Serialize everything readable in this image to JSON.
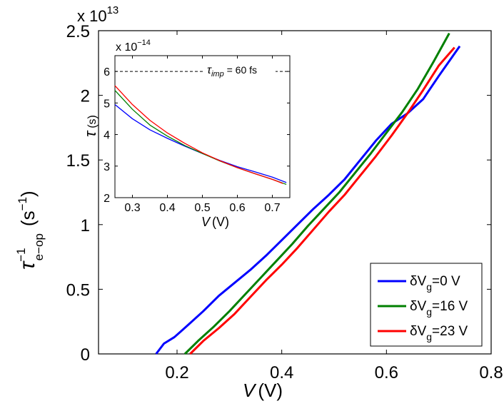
{
  "colors": {
    "blue": "#0000ff",
    "green": "#008000",
    "red": "#ff0000",
    "axis": "#000000",
    "background": "#ffffff"
  },
  "chart_data": [
    {
      "type": "line",
      "id": "main",
      "xlabel_italic": "V",
      "xlabel_unit": "(V)",
      "ylabel_symbol": "τ",
      "ylabel_sup": "−1",
      "ylabel_sub": "e−op",
      "ylabel_unit": "(s",
      "ylabel_unit_sup": "−1",
      "ylabel_unit_close": ")",
      "exponent_text": "x 10",
      "exponent_power": "13",
      "xlim": [
        0.05,
        0.8
      ],
      "ylim": [
        0,
        2.5
      ],
      "xticks": [
        0.2,
        0.4,
        0.6,
        0.8
      ],
      "xtick_labels": [
        "0.2",
        "0.4",
        "0.6",
        "0.8"
      ],
      "yticks": [
        0,
        0.5,
        1,
        1.5,
        2,
        2.5
      ],
      "ytick_labels": [
        "0",
        "0.5",
        "1",
        "1.5",
        "2",
        "2.5"
      ],
      "legend_position": "bottom-right",
      "series": [
        {
          "name": "δVg=0 V",
          "legend_prefix": "δV",
          "legend_sub": "g",
          "legend_suffix": "=0 V",
          "color": "blue",
          "x": [
            0.16,
            0.175,
            0.195,
            0.22,
            0.25,
            0.28,
            0.31,
            0.34,
            0.37,
            0.4,
            0.43,
            0.46,
            0.49,
            0.52,
            0.55,
            0.58,
            0.61,
            0.64,
            0.67,
            0.7,
            0.74
          ],
          "y": [
            0.0,
            0.08,
            0.13,
            0.22,
            0.33,
            0.45,
            0.55,
            0.65,
            0.76,
            0.88,
            1.0,
            1.12,
            1.23,
            1.35,
            1.5,
            1.65,
            1.78,
            1.86,
            1.97,
            2.15,
            2.38
          ]
        },
        {
          "name": "δVg=16 V",
          "legend_prefix": "δV",
          "legend_sub": "g",
          "legend_suffix": "=16 V",
          "color": "green",
          "x": [
            0.215,
            0.24,
            0.27,
            0.3,
            0.33,
            0.36,
            0.39,
            0.42,
            0.45,
            0.48,
            0.51,
            0.54,
            0.57,
            0.6,
            0.63,
            0.66,
            0.69,
            0.72
          ],
          "y": [
            0.0,
            0.1,
            0.21,
            0.33,
            0.46,
            0.59,
            0.72,
            0.85,
            0.99,
            1.12,
            1.25,
            1.4,
            1.55,
            1.71,
            1.87,
            2.05,
            2.26,
            2.48
          ]
        },
        {
          "name": "δVg=23 V",
          "legend_prefix": "δV",
          "legend_sub": "g",
          "legend_suffix": "=23 V",
          "color": "red",
          "x": [
            0.225,
            0.25,
            0.28,
            0.31,
            0.34,
            0.37,
            0.4,
            0.43,
            0.46,
            0.49,
            0.52,
            0.55,
            0.58,
            0.61,
            0.64,
            0.67,
            0.7,
            0.73
          ],
          "y": [
            0.0,
            0.1,
            0.2,
            0.31,
            0.44,
            0.57,
            0.69,
            0.82,
            0.96,
            1.1,
            1.23,
            1.38,
            1.53,
            1.69,
            1.86,
            2.04,
            2.23,
            2.37
          ]
        }
      ]
    },
    {
      "type": "line",
      "id": "inset",
      "xlabel_italic": "V",
      "xlabel_unit": "(V)",
      "ylabel_symbol": "τ",
      "ylabel_unit": "(s)",
      "exponent_text": "x 10",
      "exponent_power": "−14",
      "xlim": [
        0.25,
        0.75
      ],
      "ylim": [
        2,
        6.5
      ],
      "xticks": [
        0.3,
        0.4,
        0.5,
        0.6,
        0.7
      ],
      "xtick_labels": [
        "0.3",
        "0.4",
        "0.5",
        "0.6",
        "0.7"
      ],
      "yticks": [
        2,
        3,
        4,
        5,
        6
      ],
      "ytick_labels": [
        "2",
        "3",
        "4",
        "5",
        "6"
      ],
      "reference_line": {
        "y": 6,
        "label_symbol": "τ",
        "label_sub": "imp",
        "label_rest": " = 60 fs"
      },
      "series": [
        {
          "name": "δVg=0 V",
          "color": "blue",
          "x": [
            0.25,
            0.3,
            0.35,
            0.4,
            0.45,
            0.5,
            0.55,
            0.6,
            0.65,
            0.7,
            0.74
          ],
          "y": [
            4.95,
            4.5,
            4.15,
            3.88,
            3.63,
            3.4,
            3.18,
            2.98,
            2.82,
            2.65,
            2.48
          ]
        },
        {
          "name": "δVg=16 V",
          "color": "green",
          "x": [
            0.25,
            0.3,
            0.35,
            0.4,
            0.45,
            0.5,
            0.55,
            0.6,
            0.65,
            0.7,
            0.74
          ],
          "y": [
            5.4,
            4.8,
            4.3,
            3.95,
            3.65,
            3.4,
            3.16,
            2.95,
            2.76,
            2.58,
            2.42
          ]
        },
        {
          "name": "δVg=23 V",
          "color": "red",
          "x": [
            0.25,
            0.3,
            0.35,
            0.4,
            0.45,
            0.5,
            0.55,
            0.6,
            0.65,
            0.7,
            0.73
          ],
          "y": [
            5.55,
            4.95,
            4.45,
            4.05,
            3.72,
            3.42,
            3.17,
            2.95,
            2.76,
            2.58,
            2.45
          ]
        }
      ]
    }
  ]
}
